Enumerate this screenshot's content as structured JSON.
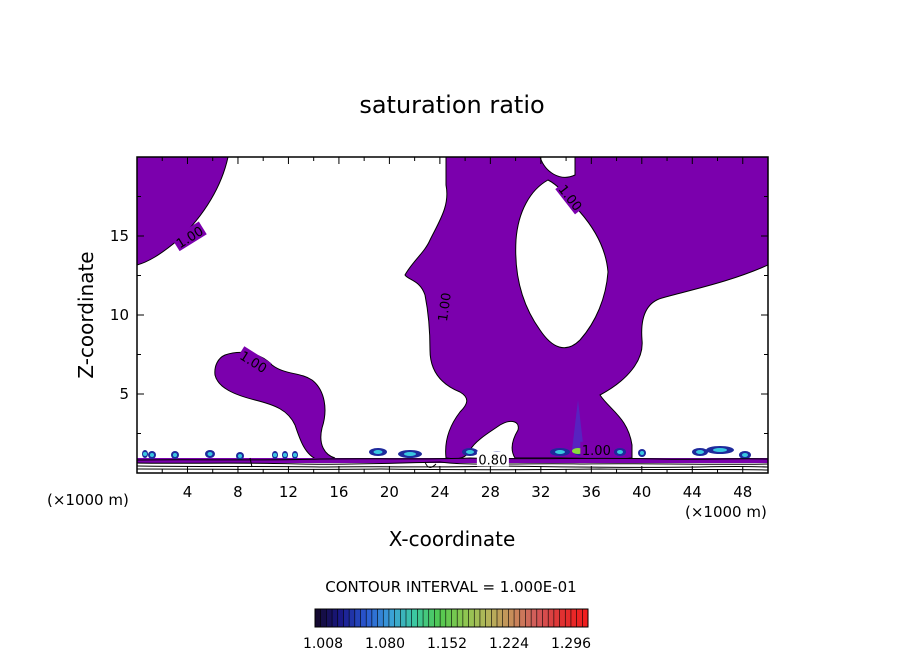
{
  "chart_data": {
    "type": "contour",
    "title": "saturation ratio",
    "xlabel": "X-coordinate",
    "ylabel": "Z-coordinate",
    "x_unit_left": "(×1000 m)",
    "x_unit_right": "(×1000 m)",
    "xlim": [
      0,
      50
    ],
    "ylim": [
      0,
      20
    ],
    "x_ticks": [
      4,
      8,
      12,
      16,
      20,
      24,
      28,
      32,
      36,
      40,
      44,
      48
    ],
    "y_ticks": [
      5,
      10,
      15
    ],
    "contour_labels": [
      {
        "text": "1.00",
        "x": 4.2,
        "y": 14.9,
        "angle": -32
      },
      {
        "text": "1.00",
        "x": 9.2,
        "y": 7.0,
        "angle": 32
      },
      {
        "text": "1.00",
        "x": 24.4,
        "y": 10.5,
        "angle": -82
      },
      {
        "text": "1.00",
        "x": 34.3,
        "y": 17.4,
        "angle": 52
      },
      {
        "text": "0.80",
        "x": 28.2,
        "y": 0.8,
        "angle": 0
      },
      {
        "text": "1.00",
        "x": 36.4,
        "y": 1.4,
        "angle": 0
      }
    ],
    "contour_interval": "CONTOUR INTERVAL = 1.000E-01",
    "colorbar": {
      "labels": [
        "1.008",
        "1.080",
        "1.152",
        "1.224",
        "1.296"
      ],
      "colors": [
        "#140a32",
        "#1a1a8c",
        "#2a5ad2",
        "#3aa0d8",
        "#3cc8a0",
        "#50c850",
        "#8cc850",
        "#b4b45a",
        "#c88c5a",
        "#d25a5a",
        "#e03232",
        "#f01e1e"
      ]
    },
    "fill_color": "#7b00ad"
  }
}
